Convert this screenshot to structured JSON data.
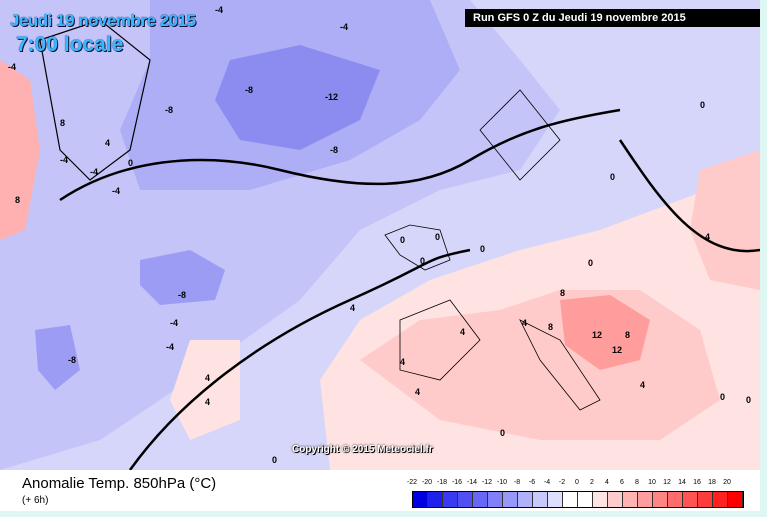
{
  "header": {
    "date": "Jeudi 19 novembre 2015",
    "time": "7:00 locale",
    "run": "Run GFS 0 Z du Jeudi 19 novembre 2015"
  },
  "map": {
    "copyright": "Copyright © 2015 Meteociel.fr",
    "contour_labels": [
      "-4",
      "-8",
      "-12",
      "-8",
      "-4",
      "-4",
      "-8",
      "-8",
      "-4",
      "-8",
      "0",
      "0",
      "0",
      "-4",
      "4",
      "8",
      "8",
      "4",
      "-4",
      "0",
      "0",
      "0",
      "4",
      "4",
      "4",
      "4",
      "4",
      "4",
      "8",
      "8",
      "12",
      "12",
      "8",
      "4",
      "0",
      "0",
      "0",
      "0",
      "4",
      "0",
      "0",
      "-4",
      "-4"
    ]
  },
  "panel": {
    "title": "Anomalie Temp. 850hPa (°C)",
    "subtitle": "(+ 6h)"
  },
  "legend": {
    "labels": [
      "-22",
      "-20",
      "-18",
      "-16",
      "-14",
      "-12",
      "-10",
      "-8",
      "-6",
      "-4",
      "-2",
      "0",
      "2",
      "4",
      "6",
      "8",
      "10",
      "12",
      "14",
      "16",
      "18",
      "20"
    ],
    "colors": [
      "#0000e0",
      "#2020ee",
      "#3a3af0",
      "#5050f4",
      "#6868f6",
      "#8080f8",
      "#9898fa",
      "#b0b0fb",
      "#c8c8fc",
      "#dedefd",
      "#ffffff",
      "#ffffff",
      "#ffe4e4",
      "#ffcccc",
      "#ffb4b4",
      "#ff9c9c",
      "#ff8484",
      "#ff6c6c",
      "#ff5454",
      "#ff3c3c",
      "#ff2020",
      "#ff0000"
    ]
  }
}
